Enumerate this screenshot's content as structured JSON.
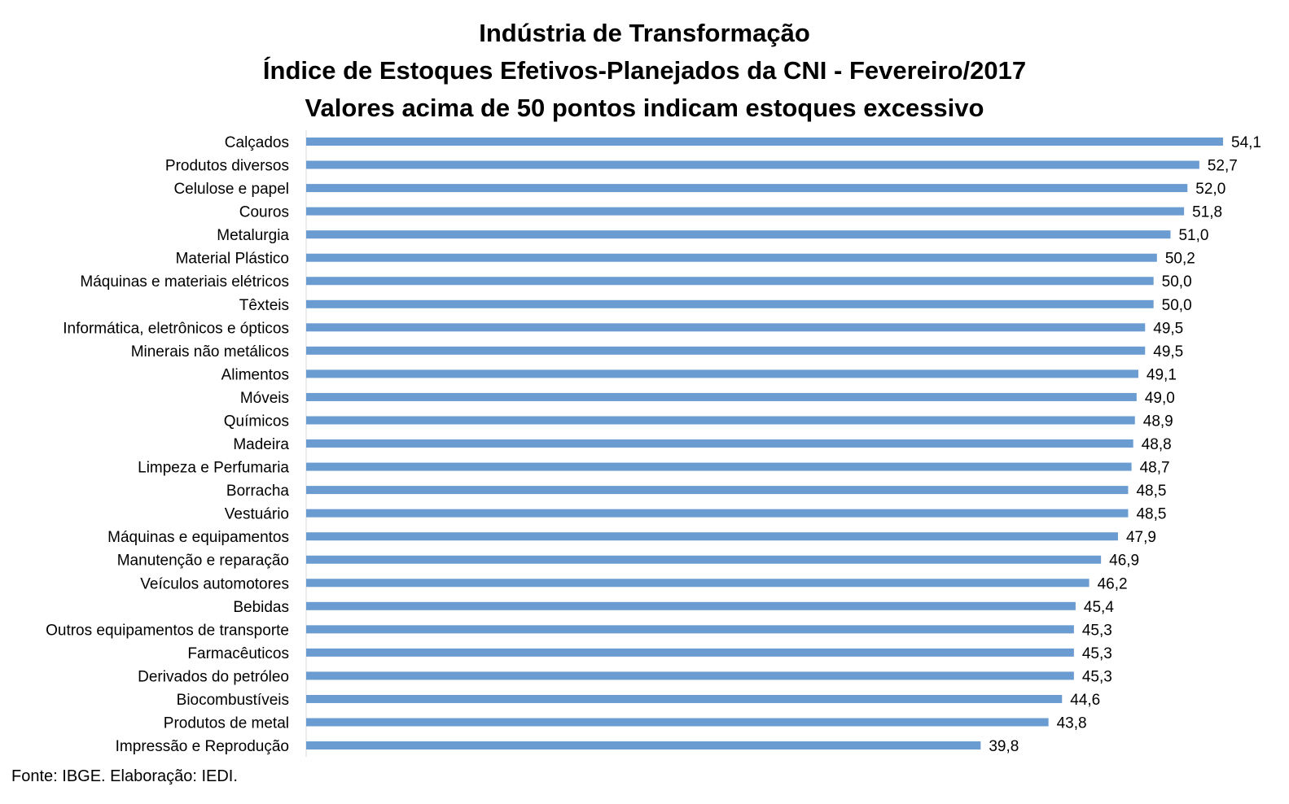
{
  "chart_data": {
    "type": "bar",
    "orientation": "horizontal",
    "title": [
      "Indústria de Transformação",
      "Índice de Estoques Efetivos-Planejados da CNI - Fevereiro/2017",
      "Valores acima de 50 pontos indicam estoques excessivo"
    ],
    "categories": [
      "Calçados",
      "Produtos diversos",
      "Celulose e papel",
      "Couros",
      "Metalurgia",
      "Material Plástico",
      "Máquinas e materiais elétricos",
      "Têxteis",
      "Informática, eletrônicos e ópticos",
      "Minerais não metálicos",
      "Alimentos",
      "Móveis",
      "Químicos",
      "Madeira",
      "Limpeza e Perfumaria",
      "Borracha",
      "Vestuário",
      "Máquinas e equipamentos",
      "Manutenção e reparação",
      "Veículos automotores",
      "Bebidas",
      "Outros equipamentos de transporte",
      "Farmacêuticos",
      "Derivados do petróleo",
      "Biocombustíveis",
      "Produtos de metal",
      "Impressão e Reprodução"
    ],
    "values": [
      54.1,
      52.7,
      52.0,
      51.8,
      51.0,
      50.2,
      50.0,
      50.0,
      49.5,
      49.5,
      49.1,
      49.0,
      48.9,
      48.8,
      48.7,
      48.5,
      48.5,
      47.9,
      46.9,
      46.2,
      45.4,
      45.3,
      45.3,
      45.3,
      44.6,
      43.8,
      39.8
    ],
    "value_labels": [
      "54,1",
      "52,7",
      "52,0",
      "51,8",
      "51,0",
      "50,2",
      "50,0",
      "50,0",
      "49,5",
      "49,5",
      "49,1",
      "49,0",
      "48,9",
      "48,8",
      "48,7",
      "48,5",
      "48,5",
      "47,9",
      "46,9",
      "46,2",
      "45,4",
      "45,3",
      "45,3",
      "45,3",
      "44,6",
      "43,8",
      "39,8"
    ],
    "xlim": [
      0,
      54.1
    ],
    "grid": false,
    "legend": "none",
    "bar_color": "#6a9bd1"
  },
  "footer": {
    "source": "Fonte: IBGE. Elaboração: IEDI."
  }
}
